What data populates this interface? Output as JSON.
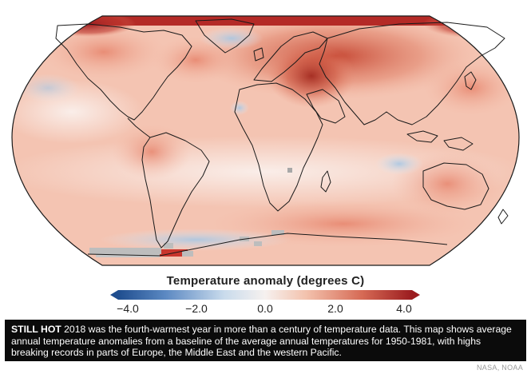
{
  "map": {
    "projection": "Robinson",
    "palette": {
      "deep_warm": "#8b1a1a",
      "warm": "#d2533f",
      "mild_warm": "#f0a98e",
      "faint_warm": "#f9dccf",
      "neutral": "#f7f3f1",
      "cool": "#bcd3e8",
      "deep_cool": "#2b5aa0",
      "no_data": "#bdbdbd",
      "coastline": "#1a1a1a"
    }
  },
  "legend": {
    "title": "Temperature anomaly (degrees C)",
    "ticks": [
      "−4.0",
      "−2.0",
      "0.0",
      "2.0",
      "4.0"
    ],
    "range": [
      -4.0,
      4.0
    ],
    "colors": [
      "#1f4e8f",
      "#5b88c2",
      "#c9dbec",
      "#f6f1ef",
      "#f3c2ad",
      "#d66a55",
      "#9b1c1f"
    ]
  },
  "caption": {
    "headline": "STILL HOT",
    "body": "2018 was the fourth-warmest year in more than a century of temperature data. This map shows average annual temperature anomalies from a baseline of the average annual temperatures for 1950-1981, with highs breaking records in parts of Europe, the Middle East and the western Pacific."
  },
  "credit": "NASA, NOAA"
}
